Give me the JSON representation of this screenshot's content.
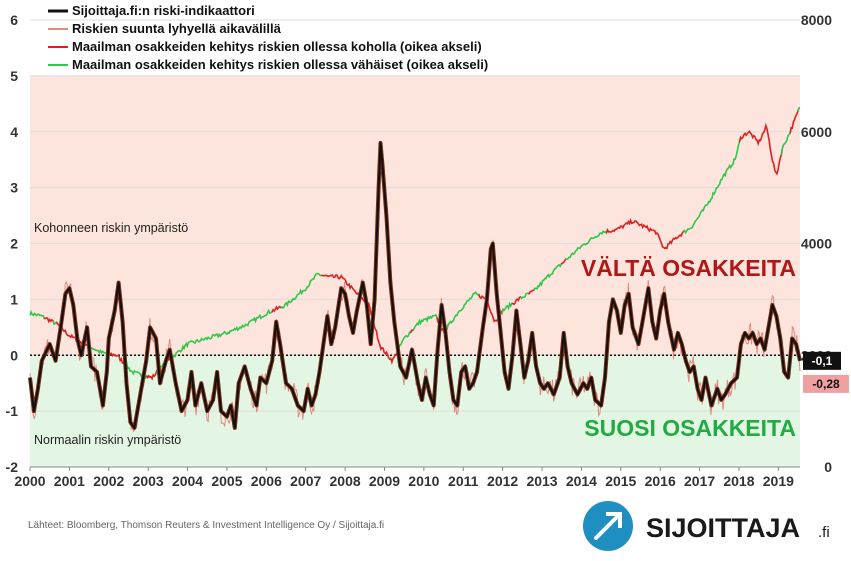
{
  "chart_data": {
    "type": "line",
    "title": "",
    "xlabel": "",
    "ylabel": "",
    "x_ticks": [
      "2000",
      "2001",
      "2002",
      "2003",
      "2004",
      "2005",
      "2006",
      "2007",
      "2008",
      "2009",
      "2010",
      "2011",
      "2012",
      "2013",
      "2014",
      "2015",
      "2016",
      "2017",
      "2018",
      "2019"
    ],
    "xlim": [
      2000,
      2019.55
    ],
    "ylim_left": [
      -2,
      6
    ],
    "y_ticks_left": [
      "-2",
      "-1",
      "0",
      "1",
      "2",
      "3",
      "4",
      "5",
      "6"
    ],
    "ylim_right": [
      0,
      8000
    ],
    "y_ticks_right": [
      "0",
      "2000",
      "4000",
      "6000",
      "8000"
    ],
    "background_zones": [
      {
        "from": 0,
        "to": 5,
        "color": "#fde4dc",
        "label": "Kohonneen riskin ympäristö"
      },
      {
        "from": -2,
        "to": 0,
        "color": "#e3f6e3",
        "label": "Normaalin riskin ympäristö"
      }
    ],
    "zone_callouts": {
      "high": "VÄLTÄ OSAKKEITA",
      "low": "SUOSI OSAKKEITA"
    },
    "grid": true,
    "legend_position": "top-left",
    "last_values": {
      "indicator": "-0,1",
      "short_term": "-0,28"
    },
    "series": [
      {
        "name": "Sijoittaja.fi:n riski-indikaattori",
        "axis": "left",
        "color": "#111111",
        "points": [
          [
            2000.0,
            -0.4
          ],
          [
            2000.1,
            -1.0
          ],
          [
            2000.2,
            -0.6
          ],
          [
            2000.3,
            -0.1
          ],
          [
            2000.5,
            0.2
          ],
          [
            2000.65,
            -0.1
          ],
          [
            2000.8,
            0.6
          ],
          [
            2000.9,
            1.1
          ],
          [
            2001.0,
            1.2
          ],
          [
            2001.1,
            0.9
          ],
          [
            2001.2,
            0.3
          ],
          [
            2001.3,
            0.0
          ],
          [
            2001.45,
            0.5
          ],
          [
            2001.55,
            -0.2
          ],
          [
            2001.7,
            -0.3
          ],
          [
            2001.85,
            -0.9
          ],
          [
            2001.95,
            -0.3
          ],
          [
            2002.0,
            0.3
          ],
          [
            2002.15,
            0.8
          ],
          [
            2002.25,
            1.3
          ],
          [
            2002.35,
            0.6
          ],
          [
            2002.45,
            -0.5
          ],
          [
            2002.55,
            -1.2
          ],
          [
            2002.65,
            -1.3
          ],
          [
            2002.8,
            -0.7
          ],
          [
            2002.95,
            -0.1
          ],
          [
            2003.05,
            0.5
          ],
          [
            2003.2,
            0.3
          ],
          [
            2003.3,
            -0.5
          ],
          [
            2003.45,
            -0.1
          ],
          [
            2003.55,
            0.1
          ],
          [
            2003.7,
            -0.5
          ],
          [
            2003.85,
            -1.0
          ],
          [
            2004.0,
            -0.8
          ],
          [
            2004.1,
            -0.3
          ],
          [
            2004.2,
            -0.9
          ],
          [
            2004.35,
            -0.5
          ],
          [
            2004.5,
            -1.0
          ],
          [
            2004.65,
            -0.8
          ],
          [
            2004.75,
            -0.3
          ],
          [
            2004.85,
            -1.0
          ],
          [
            2005.0,
            -1.1
          ],
          [
            2005.1,
            -0.9
          ],
          [
            2005.2,
            -1.3
          ],
          [
            2005.3,
            -0.5
          ],
          [
            2005.45,
            -0.2
          ],
          [
            2005.6,
            -0.6
          ],
          [
            2005.75,
            -0.9
          ],
          [
            2005.85,
            -0.4
          ],
          [
            2006.0,
            -0.5
          ],
          [
            2006.15,
            -0.1
          ],
          [
            2006.25,
            0.6
          ],
          [
            2006.35,
            0.2
          ],
          [
            2006.5,
            -0.5
          ],
          [
            2006.65,
            -0.6
          ],
          [
            2006.8,
            -0.9
          ],
          [
            2006.95,
            -1.0
          ],
          [
            2007.05,
            -0.6
          ],
          [
            2007.15,
            -0.9
          ],
          [
            2007.25,
            -0.7
          ],
          [
            2007.35,
            -0.3
          ],
          [
            2007.45,
            0.2
          ],
          [
            2007.55,
            0.7
          ],
          [
            2007.65,
            0.2
          ],
          [
            2007.75,
            0.5
          ],
          [
            2007.9,
            1.2
          ],
          [
            2008.0,
            1.1
          ],
          [
            2008.1,
            0.7
          ],
          [
            2008.2,
            0.4
          ],
          [
            2008.3,
            0.8
          ],
          [
            2008.45,
            1.3
          ],
          [
            2008.55,
            0.9
          ],
          [
            2008.65,
            0.2
          ],
          [
            2008.75,
            1.0
          ],
          [
            2008.85,
            3.0
          ],
          [
            2008.9,
            3.8
          ],
          [
            2008.95,
            3.4
          ],
          [
            2009.05,
            2.5
          ],
          [
            2009.15,
            1.3
          ],
          [
            2009.25,
            0.6
          ],
          [
            2009.4,
            -0.2
          ],
          [
            2009.55,
            -0.4
          ],
          [
            2009.7,
            0.1
          ],
          [
            2009.85,
            -0.5
          ],
          [
            2009.95,
            -0.8
          ],
          [
            2010.05,
            -0.4
          ],
          [
            2010.15,
            -0.7
          ],
          [
            2010.25,
            -0.9
          ],
          [
            2010.35,
            0.1
          ],
          [
            2010.45,
            0.9
          ],
          [
            2010.55,
            0.4
          ],
          [
            2010.65,
            -0.3
          ],
          [
            2010.75,
            -0.8
          ],
          [
            2010.85,
            -0.9
          ],
          [
            2010.95,
            -0.3
          ],
          [
            2011.05,
            -0.2
          ],
          [
            2011.15,
            -0.6
          ],
          [
            2011.25,
            -0.5
          ],
          [
            2011.35,
            -0.3
          ],
          [
            2011.5,
            0.5
          ],
          [
            2011.6,
            1.0
          ],
          [
            2011.7,
            1.9
          ],
          [
            2011.75,
            2.0
          ],
          [
            2011.85,
            1.1
          ],
          [
            2011.95,
            0.4
          ],
          [
            2012.05,
            -0.3
          ],
          [
            2012.15,
            -0.6
          ],
          [
            2012.25,
            0.0
          ],
          [
            2012.35,
            0.8
          ],
          [
            2012.45,
            0.2
          ],
          [
            2012.55,
            -0.4
          ],
          [
            2012.65,
            -0.1
          ],
          [
            2012.75,
            0.4
          ],
          [
            2012.85,
            -0.2
          ],
          [
            2012.95,
            -0.5
          ],
          [
            2013.05,
            -0.6
          ],
          [
            2013.15,
            -0.5
          ],
          [
            2013.3,
            -0.7
          ],
          [
            2013.45,
            -0.4
          ],
          [
            2013.55,
            0.4
          ],
          [
            2013.65,
            -0.2
          ],
          [
            2013.75,
            -0.5
          ],
          [
            2013.9,
            -0.7
          ],
          [
            2014.05,
            -0.5
          ],
          [
            2014.15,
            -0.6
          ],
          [
            2014.25,
            -0.4
          ],
          [
            2014.35,
            -0.8
          ],
          [
            2014.5,
            -0.9
          ],
          [
            2014.6,
            -0.4
          ],
          [
            2014.7,
            0.6
          ],
          [
            2014.8,
            1.0
          ],
          [
            2014.9,
            0.8
          ],
          [
            2015.0,
            0.4
          ],
          [
            2015.1,
            0.9
          ],
          [
            2015.2,
            1.1
          ],
          [
            2015.3,
            0.5
          ],
          [
            2015.45,
            0.2
          ],
          [
            2015.55,
            0.6
          ],
          [
            2015.7,
            1.2
          ],
          [
            2015.8,
            0.6
          ],
          [
            2015.9,
            0.3
          ],
          [
            2016.0,
            0.8
          ],
          [
            2016.1,
            1.1
          ],
          [
            2016.2,
            0.6
          ],
          [
            2016.35,
            0.1
          ],
          [
            2016.45,
            0.4
          ],
          [
            2016.55,
            0.2
          ],
          [
            2016.65,
            -0.1
          ],
          [
            2016.75,
            -0.3
          ],
          [
            2016.85,
            -0.2
          ],
          [
            2016.95,
            -0.6
          ],
          [
            2017.05,
            -0.8
          ],
          [
            2017.15,
            -0.4
          ],
          [
            2017.3,
            -0.9
          ],
          [
            2017.45,
            -0.6
          ],
          [
            2017.55,
            -0.8
          ],
          [
            2017.65,
            -0.7
          ],
          [
            2017.8,
            -0.5
          ],
          [
            2017.95,
            -0.4
          ],
          [
            2018.05,
            0.2
          ],
          [
            2018.15,
            0.4
          ],
          [
            2018.25,
            0.3
          ],
          [
            2018.35,
            0.4
          ],
          [
            2018.45,
            0.2
          ],
          [
            2018.55,
            0.3
          ],
          [
            2018.65,
            0.1
          ],
          [
            2018.75,
            0.5
          ],
          [
            2018.85,
            0.9
          ],
          [
            2018.95,
            0.7
          ],
          [
            2019.05,
            0.3
          ],
          [
            2019.15,
            -0.3
          ],
          [
            2019.25,
            -0.4
          ],
          [
            2019.35,
            0.3
          ],
          [
            2019.45,
            0.2
          ],
          [
            2019.55,
            -0.1
          ]
        ]
      },
      {
        "name": "Riskien suunta lyhyellä aikavälillä",
        "axis": "left",
        "color": "#e08a80",
        "points_note": "closely tracks the indicator with added short-term noise",
        "last_value": -0.28
      },
      {
        "name": "Maailman osakkeiden kehitys riskien ollessa koholla (oikea akseli)",
        "axis": "right",
        "color": "#e02020"
      },
      {
        "name": "Maailman osakkeiden kehitys riskien ollessa vähäiset (oikea akseli)",
        "axis": "right",
        "color": "#2ec84a",
        "points": [
          [
            2000.0,
            2750
          ],
          [
            2000.3,
            2700
          ],
          [
            2000.7,
            2550
          ],
          [
            2001.0,
            2350
          ],
          [
            2001.4,
            2200
          ],
          [
            2001.8,
            2050
          ],
          [
            2002.2,
            2000
          ],
          [
            2002.6,
            1700
          ],
          [
            2002.8,
            1650
          ],
          [
            2003.1,
            1600
          ],
          [
            2003.5,
            1900
          ],
          [
            2004.0,
            2200
          ],
          [
            2004.5,
            2300
          ],
          [
            2005.0,
            2400
          ],
          [
            2005.5,
            2550
          ],
          [
            2006.0,
            2750
          ],
          [
            2006.5,
            2900
          ],
          [
            2007.0,
            3200
          ],
          [
            2007.3,
            3450
          ],
          [
            2007.6,
            3400
          ],
          [
            2007.9,
            3400
          ],
          [
            2008.3,
            3100
          ],
          [
            2008.6,
            2900
          ],
          [
            2008.9,
            2150
          ],
          [
            2009.2,
            1900
          ],
          [
            2009.5,
            2300
          ],
          [
            2009.9,
            2600
          ],
          [
            2010.3,
            2700
          ],
          [
            2010.5,
            2400
          ],
          [
            2010.9,
            2800
          ],
          [
            2011.3,
            3100
          ],
          [
            2011.6,
            3000
          ],
          [
            2011.8,
            2600
          ],
          [
            2012.0,
            2800
          ],
          [
            2012.4,
            3000
          ],
          [
            2012.8,
            3150
          ],
          [
            2013.2,
            3450
          ],
          [
            2013.6,
            3700
          ],
          [
            2014.0,
            3950
          ],
          [
            2014.5,
            4200
          ],
          [
            2014.9,
            4250
          ],
          [
            2015.3,
            4400
          ],
          [
            2015.6,
            4300
          ],
          [
            2015.9,
            4200
          ],
          [
            2016.1,
            3900
          ],
          [
            2016.4,
            4100
          ],
          [
            2016.8,
            4300
          ],
          [
            2017.2,
            4700
          ],
          [
            2017.6,
            5200
          ],
          [
            2017.9,
            5500
          ],
          [
            2018.05,
            5900
          ],
          [
            2018.25,
            6000
          ],
          [
            2018.5,
            5800
          ],
          [
            2018.7,
            6100
          ],
          [
            2018.85,
            5500
          ],
          [
            2018.95,
            5200
          ],
          [
            2019.1,
            5700
          ],
          [
            2019.3,
            6000
          ],
          [
            2019.55,
            6450
          ]
        ]
      }
    ]
  },
  "legend": {
    "items": [
      {
        "label": "Sijoittaja.fi:n riski-indikaattori",
        "color": "#111111"
      },
      {
        "label": "Riskien suunta lyhyellä aikavälillä",
        "color": "#e08a80"
      },
      {
        "label": "Maailman osakkeiden kehitys riskien ollessa koholla (oikea akseli)",
        "color": "#e02020"
      },
      {
        "label": "Maailman osakkeiden kehitys riskien ollessa vähäiset (oikea akseli)",
        "color": "#2ec84a"
      }
    ]
  },
  "footer": {
    "source": "Lähteet: Bloomberg, Thomson Reuters & Investment Intelligence Oy / Sijoittaja.fi",
    "brand": "SIJOITTAJA",
    "brand_suffix": ".fi"
  }
}
